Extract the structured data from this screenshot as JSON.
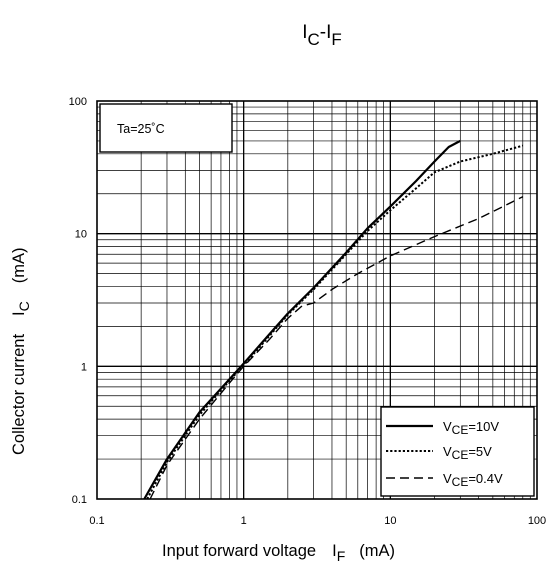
{
  "chart_data": {
    "type": "line",
    "title": {
      "main": "I",
      "sub": "C",
      "sep": "-I",
      "sub2": "F"
    },
    "xlabel": {
      "main": "Input forward voltage",
      "sym": "I",
      "sub": "F",
      "unit": "(mA)"
    },
    "ylabel": {
      "main": "Collector current",
      "sym": "I",
      "sub": "C",
      "unit": "(mA)"
    },
    "x_scale": "log",
    "y_scale": "log",
    "xlim": [
      0.1,
      100
    ],
    "ylim": [
      0.1,
      100
    ],
    "x_ticks": [
      "0.1",
      "1",
      "10",
      "100"
    ],
    "y_ticks": [
      "0.1",
      "1",
      "10",
      "100"
    ],
    "grid": true,
    "annotation": "Ta=25˚C",
    "legend_placement": "bottom-right",
    "series": [
      {
        "name": {
          "main": "V",
          "sub": "CE",
          "value": "=10V"
        },
        "style": "solid",
        "points": [
          [
            0.21,
            0.1
          ],
          [
            0.3,
            0.2
          ],
          [
            0.5,
            0.45
          ],
          [
            0.8,
            0.8
          ],
          [
            1,
            1.05
          ],
          [
            1.5,
            1.75
          ],
          [
            2,
            2.5
          ],
          [
            3,
            3.9
          ],
          [
            5,
            7.2
          ],
          [
            7,
            11
          ],
          [
            10,
            16
          ],
          [
            15,
            25
          ],
          [
            20,
            35
          ],
          [
            25,
            45
          ],
          [
            30,
            50
          ]
        ]
      },
      {
        "name": {
          "main": "V",
          "sub": "CE",
          "value": "=5V"
        },
        "style": "dotted",
        "points": [
          [
            0.22,
            0.1
          ],
          [
            0.3,
            0.19
          ],
          [
            0.5,
            0.43
          ],
          [
            0.8,
            0.78
          ],
          [
            1,
            1.02
          ],
          [
            1.5,
            1.7
          ],
          [
            2,
            2.45
          ],
          [
            3,
            3.8
          ],
          [
            5,
            7
          ],
          [
            7,
            10.5
          ],
          [
            10,
            15
          ],
          [
            15,
            22
          ],
          [
            20,
            29
          ],
          [
            30,
            35
          ],
          [
            50,
            40
          ],
          [
            80,
            46
          ]
        ]
      },
      {
        "name": {
          "main": "V",
          "sub": "CE",
          "value": "=0.4V"
        },
        "style": "dashed",
        "points": [
          [
            0.23,
            0.1
          ],
          [
            0.3,
            0.18
          ],
          [
            0.5,
            0.4
          ],
          [
            0.8,
            0.75
          ],
          [
            1,
            1.0
          ],
          [
            1.5,
            1.6
          ],
          [
            2,
            2.3
          ],
          [
            2.5,
            2.85
          ],
          [
            3,
            3.0
          ],
          [
            4,
            3.8
          ],
          [
            6,
            5.0
          ],
          [
            10,
            6.8
          ],
          [
            20,
            9.5
          ],
          [
            40,
            13
          ],
          [
            80,
            19
          ]
        ]
      }
    ]
  }
}
